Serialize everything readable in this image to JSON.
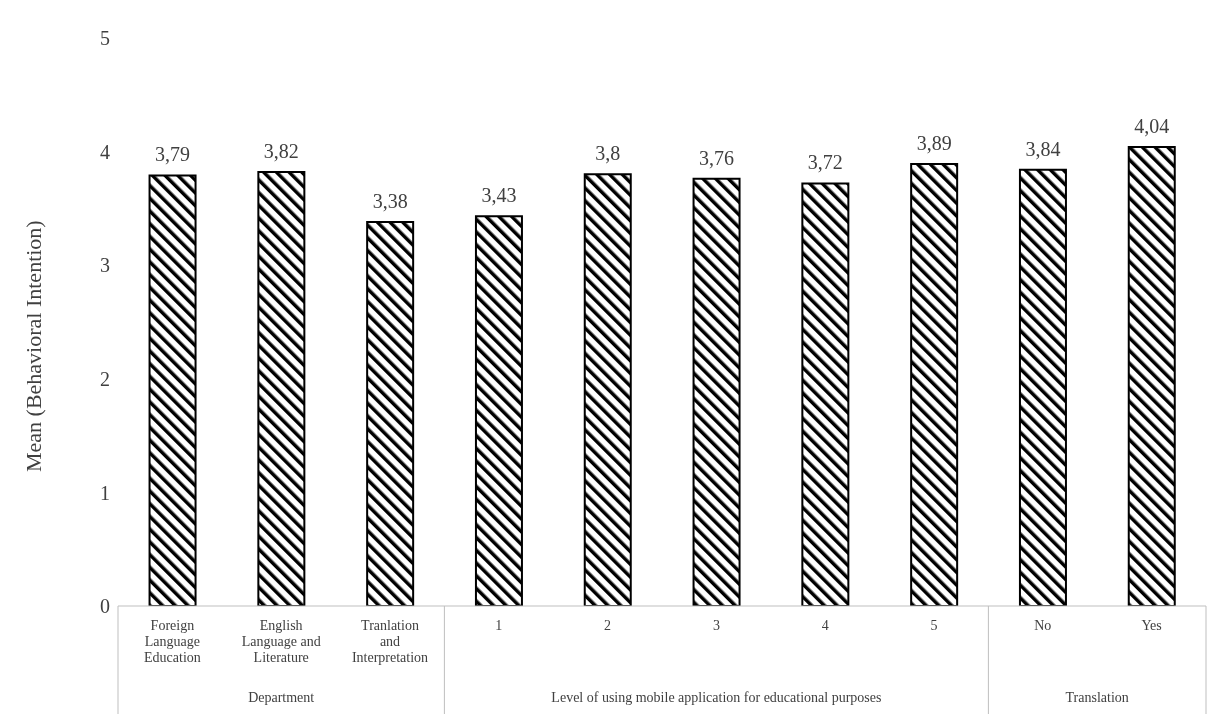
{
  "chart_data": {
    "type": "bar",
    "ylabel": "Mean (Behavioral Intention)",
    "categories": [
      "Foreign Language Education",
      "English Language and Literature",
      "Tranlation and Interpretation",
      "1",
      "2",
      "3",
      "4",
      "5",
      "No",
      "Yes"
    ],
    "values": [
      3.79,
      3.82,
      3.38,
      3.43,
      3.8,
      3.76,
      3.72,
      3.89,
      3.84,
      4.04
    ],
    "value_labels": [
      "3,79",
      "3,82",
      "3,38",
      "3,43",
      "3,8",
      "3,76",
      "3,72",
      "3,89",
      "3,84",
      "4,04"
    ],
    "color": "#000000",
    "ylim": [
      0,
      5
    ],
    "yticks": [
      0,
      1,
      2,
      3,
      4,
      5
    ],
    "grid": false,
    "legend": false,
    "annotations": [
      "Department",
      "Level of using mobile application for educational purposes",
      "Translation"
    ]
  }
}
